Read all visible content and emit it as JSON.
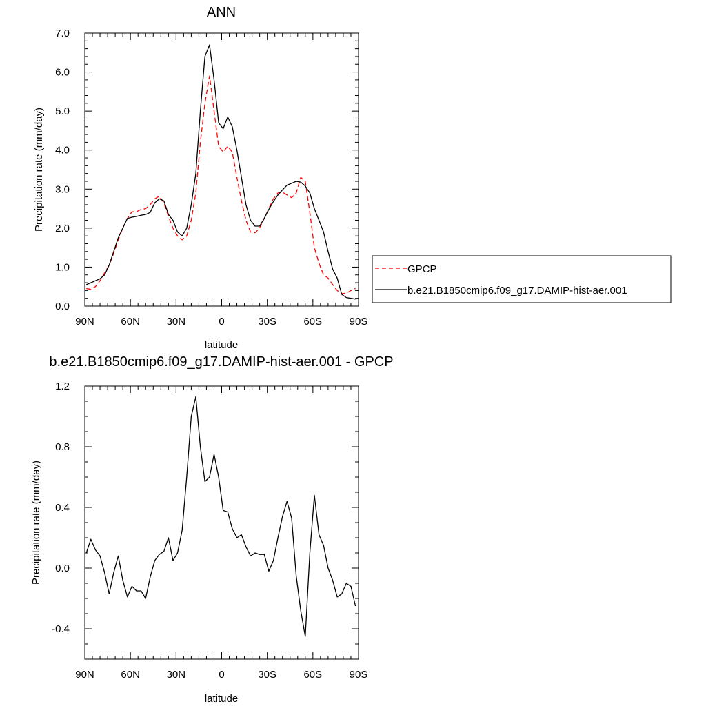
{
  "chart_data": [
    {
      "type": "line",
      "title": "ANN",
      "xlabel": "latitude",
      "ylabel": "Precipitation rate (mm/day)",
      "xlim": [
        90,
        -90
      ],
      "ylim": [
        0,
        7
      ],
      "xticks": [
        90,
        60,
        30,
        0,
        -30,
        -60,
        -90
      ],
      "xtick_labels": [
        "90N",
        "60N",
        "30N",
        "0",
        "30S",
        "60S",
        "90S"
      ],
      "yticks": [
        0,
        1,
        2,
        3,
        4,
        5,
        6,
        7
      ],
      "ytick_labels": [
        "0.0",
        "1.0",
        "2.0",
        "3.0",
        "4.0",
        "5.0",
        "6.0",
        "7.0"
      ],
      "grid": false,
      "legend_position": "right",
      "legend": [
        "GPCP",
        "b.e21.B1850cmip6.f09_g17.DAMIP-hist-aer.001"
      ],
      "series": [
        {
          "name": "GPCP",
          "color": "#ff0000",
          "style": "dashed",
          "x": [
            89,
            86,
            83,
            80,
            77,
            74,
            71,
            68,
            65,
            62,
            59,
            56,
            53,
            50,
            47,
            44,
            41,
            38,
            35,
            32,
            29,
            26,
            23,
            20,
            17,
            14,
            11,
            8,
            5,
            2,
            -1,
            -4,
            -7,
            -10,
            -13,
            -16,
            -19,
            -22,
            -25,
            -28,
            -31,
            -34,
            -37,
            -40,
            -43,
            -46,
            -49,
            -52,
            -55,
            -58,
            -61,
            -64,
            -67,
            -70,
            -73,
            -76,
            -79,
            -82,
            -85,
            -88
          ],
          "values": [
            0.45,
            0.43,
            0.5,
            0.65,
            0.85,
            1.05,
            1.35,
            1.7,
            2.0,
            2.25,
            2.42,
            2.42,
            2.48,
            2.5,
            2.6,
            2.75,
            2.82,
            2.65,
            2.3,
            2.0,
            1.8,
            1.7,
            1.8,
            2.2,
            2.9,
            4.2,
            5.2,
            5.9,
            5.0,
            4.1,
            3.95,
            4.1,
            3.95,
            3.3,
            2.7,
            2.2,
            1.9,
            1.88,
            2.0,
            2.25,
            2.5,
            2.75,
            2.9,
            2.92,
            2.85,
            2.78,
            2.9,
            3.3,
            3.2,
            2.4,
            1.5,
            1.1,
            0.8,
            0.72,
            0.55,
            0.4,
            0.32,
            0.33,
            0.4,
            0.45
          ]
        },
        {
          "name": "b.e21.B1850cmip6.f09_g17.DAMIP-hist-aer.001",
          "color": "#000000",
          "style": "solid",
          "x": [
            89,
            86,
            83,
            80,
            77,
            74,
            71,
            68,
            65,
            62,
            59,
            56,
            53,
            50,
            47,
            44,
            41,
            38,
            35,
            32,
            29,
            26,
            23,
            20,
            17,
            14,
            11,
            8,
            5,
            2,
            -1,
            -4,
            -7,
            -10,
            -13,
            -16,
            -19,
            -22,
            -25,
            -28,
            -31,
            -34,
            -37,
            -40,
            -43,
            -46,
            -49,
            -52,
            -55,
            -58,
            -61,
            -64,
            -67,
            -70,
            -73,
            -76,
            -79,
            -82,
            -85,
            -88
          ],
          "values": [
            0.55,
            0.6,
            0.65,
            0.7,
            0.8,
            1.05,
            1.4,
            1.75,
            2.0,
            2.25,
            2.28,
            2.3,
            2.33,
            2.35,
            2.4,
            2.65,
            2.75,
            2.7,
            2.35,
            2.2,
            1.9,
            1.8,
            2.0,
            2.6,
            3.4,
            5.0,
            6.4,
            6.7,
            5.8,
            4.7,
            4.55,
            4.85,
            4.6,
            4.0,
            3.3,
            2.6,
            2.2,
            2.05,
            2.05,
            2.25,
            2.48,
            2.68,
            2.85,
            2.98,
            3.1,
            3.15,
            3.2,
            3.18,
            3.08,
            2.9,
            2.5,
            2.2,
            1.9,
            1.4,
            0.95,
            0.72,
            0.3,
            0.22,
            0.2,
            0.18
          ]
        }
      ]
    },
    {
      "type": "line",
      "title": "b.e21.B1850cmip6.f09_g17.DAMIP-hist-aer.001 - GPCP",
      "xlabel": "latitude",
      "ylabel": "Precipitation rate (mm/day)",
      "xlim": [
        90,
        -90
      ],
      "ylim": [
        -0.6,
        1.2
      ],
      "xticks": [
        90,
        60,
        30,
        0,
        -30,
        -60,
        -90
      ],
      "xtick_labels": [
        "90N",
        "60N",
        "30N",
        "0",
        "30S",
        "60S",
        "90S"
      ],
      "yticks": [
        -0.4,
        0,
        0.4,
        0.8,
        1.2
      ],
      "ytick_labels": [
        "-0.4",
        "0.0",
        "0.4",
        "0.8",
        "1.2"
      ],
      "grid": false,
      "series": [
        {
          "name": "b.e21.B1850cmip6.f09_g17.DAMIP-hist-aer.001 - GPCP",
          "color": "#000000",
          "style": "solid",
          "x": [
            89,
            86,
            83,
            80,
            77,
            74,
            71,
            68,
            65,
            62,
            59,
            56,
            53,
            50,
            47,
            44,
            41,
            38,
            35,
            32,
            29,
            26,
            23,
            20,
            17,
            14,
            11,
            8,
            5,
            2,
            -1,
            -4,
            -7,
            -10,
            -13,
            -16,
            -19,
            -22,
            -25,
            -28,
            -31,
            -34,
            -37,
            -40,
            -43,
            -46,
            -49,
            -52,
            -55,
            -58,
            -61,
            -64,
            -67,
            -70,
            -73,
            -76,
            -79,
            -82,
            -85,
            -88
          ],
          "values": [
            0.1,
            0.19,
            0.12,
            0.08,
            -0.03,
            -0.17,
            -0.03,
            0.08,
            -0.08,
            -0.19,
            -0.12,
            -0.15,
            -0.15,
            -0.2,
            -0.06,
            0.05,
            0.09,
            0.11,
            0.2,
            0.05,
            0.1,
            0.25,
            0.6,
            1.0,
            1.13,
            0.8,
            0.57,
            0.6,
            0.75,
            0.6,
            0.38,
            0.37,
            0.26,
            0.2,
            0.22,
            0.14,
            0.08,
            0.1,
            0.09,
            0.09,
            -0.02,
            0.05,
            0.2,
            0.34,
            0.44,
            0.33,
            -0.05,
            -0.28,
            -0.45,
            0.1,
            0.48,
            0.22,
            0.15,
            0.0,
            -0.08,
            -0.19,
            -0.17,
            -0.1,
            -0.12,
            -0.25
          ]
        }
      ]
    }
  ]
}
